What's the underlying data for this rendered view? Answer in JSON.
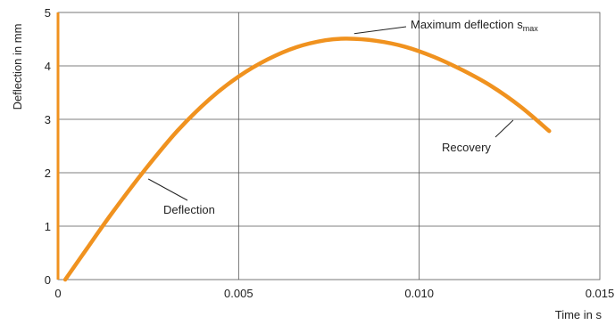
{
  "colors": {
    "curve": "#f0921f",
    "grid": "#555555",
    "y_axis": "#f0921f"
  },
  "chart_data": {
    "type": "line",
    "title": "",
    "xlabel": "Time in s",
    "ylabel": "Deflection in mm",
    "xlim": [
      0,
      0.015
    ],
    "ylim": [
      0,
      5
    ],
    "grid": true,
    "xticks": [
      0,
      0.005,
      0.01,
      0.015
    ],
    "xtick_labels": [
      "0",
      "0.005",
      "0.010",
      "0.015"
    ],
    "yticks": [
      0,
      1,
      2,
      3,
      4,
      5
    ],
    "ytick_labels": [
      "0",
      "1",
      "2",
      "3",
      "4",
      "5"
    ],
    "series": [
      {
        "x": [
          0.0002,
          0.0008,
          0.0015,
          0.0024,
          0.0033,
          0.0042,
          0.005,
          0.0058,
          0.0066,
          0.0074,
          0.008,
          0.0088,
          0.0096,
          0.0104,
          0.0112,
          0.012,
          0.0128,
          0.0136
        ],
        "y": [
          0.0,
          0.58,
          1.25,
          2.05,
          2.78,
          3.38,
          3.8,
          4.12,
          4.35,
          4.48,
          4.51,
          4.47,
          4.36,
          4.17,
          3.92,
          3.62,
          3.24,
          2.78
        ]
      }
    ],
    "annotations": [
      {
        "text": "Maximum deflection s",
        "subscript": "max",
        "x": 0.0082,
        "y": 4.52
      },
      {
        "text": "Recovery",
        "x": 0.0126,
        "y": 3.05
      },
      {
        "text": "Deflection",
        "x": 0.0025,
        "y": 1.95
      }
    ]
  }
}
